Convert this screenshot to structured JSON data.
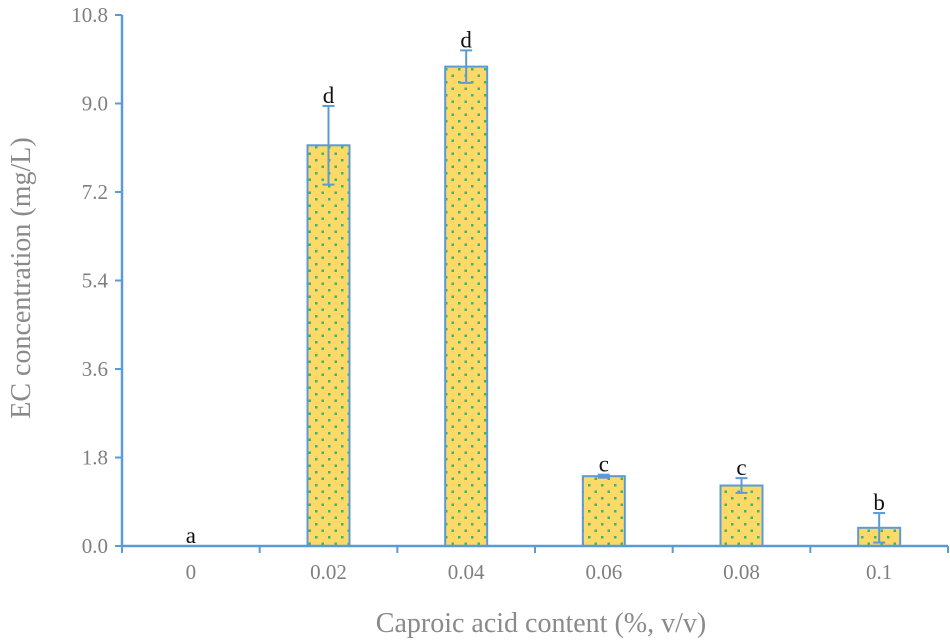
{
  "chart_data": {
    "type": "bar",
    "title": "",
    "xlabel": "Caproic acid content (%, v/v)",
    "ylabel": "EC concentration (mg/L)",
    "categories": [
      "0",
      "0.02",
      "0.04",
      "0.06",
      "0.08",
      "0.1"
    ],
    "values": [
      0.0,
      8.15,
      9.75,
      1.42,
      1.23,
      0.37
    ],
    "errors": [
      0.0,
      0.8,
      0.33,
      0.03,
      0.15,
      0.3
    ],
    "significance_letters": [
      "a",
      "d",
      "d",
      "c",
      "c",
      "b"
    ],
    "ylim": [
      0,
      10.8
    ],
    "yticks": [
      "0.0",
      "1.8",
      "3.6",
      "5.4",
      "7.2",
      "9.0",
      "10.8"
    ],
    "grid": false,
    "legend": "none",
    "colors": {
      "bar_fill": "#FDD967",
      "bar_stroke": "#5B9BD5",
      "dot_pattern": "#3CB371",
      "axis": "#5B9BD5",
      "tick_label": "#7F7F7F",
      "axis_title": "#8A8A8A",
      "error_bar": "#5B9BD5"
    }
  }
}
